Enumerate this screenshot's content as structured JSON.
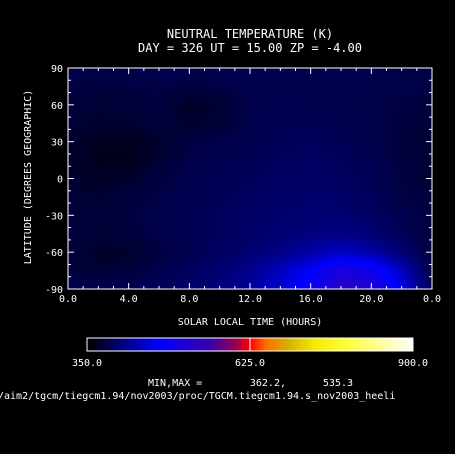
{
  "chart_data": {
    "type": "heatmap",
    "title": "NEUTRAL TEMPERATURE (K)",
    "subtitle": "DAY = 326   UT = 15.00   ZP =   -4.00",
    "xlabel": "SOLAR LOCAL TIME (HOURS)",
    "ylabel": "LATITUDE (DEGREES GEOGRAPHIC)",
    "xlim": [
      0.0,
      24.0
    ],
    "ylim": [
      -90,
      90
    ],
    "x_ticks": [
      "0.0",
      "4.0",
      "8.0",
      "12.0",
      "16.0",
      "20.0",
      "0.0"
    ],
    "y_ticks": [
      "90",
      "60",
      "30",
      "0",
      "-30",
      "-60",
      "-90"
    ],
    "x_tick_values": [
      0,
      4,
      8,
      12,
      16,
      20,
      24
    ],
    "y_tick_values": [
      90,
      60,
      30,
      0,
      -30,
      -60,
      -90
    ],
    "colorbar": {
      "min": 350.0,
      "mid": 625.0,
      "max": 900.0,
      "labels": [
        "350.0",
        "625.0",
        "900.0"
      ]
    },
    "minmax_label": "MIN,MAX =",
    "min_value": "362.2,",
    "max_value": "535.3",
    "file_path": "/aim2/tgcm/tiegcm1.94/nov2003/proc/TGCM.tiegcm1.94.s_nov2003_heeli",
    "x": [
      0,
      2,
      4,
      6,
      8,
      10,
      12,
      14,
      16,
      18,
      20,
      22,
      24
    ],
    "y": [
      90,
      75,
      60,
      45,
      30,
      15,
      0,
      -15,
      -30,
      -45,
      -60,
      -75,
      -90
    ],
    "z": [
      [
        385,
        385,
        386,
        387,
        388,
        388,
        387,
        387,
        386,
        386,
        386,
        385,
        385
      ],
      [
        382,
        380,
        381,
        384,
        380,
        382,
        386,
        387,
        386,
        386,
        385,
        384,
        382
      ],
      [
        378,
        375,
        376,
        380,
        368,
        374,
        385,
        388,
        387,
        386,
        384,
        381,
        378
      ],
      [
        376,
        372,
        373,
        378,
        372,
        376,
        386,
        390,
        390,
        388,
        385,
        380,
        376
      ],
      [
        373,
        366,
        365,
        372,
        380,
        384,
        388,
        392,
        394,
        391,
        386,
        379,
        373
      ],
      [
        372,
        363,
        364,
        374,
        384,
        388,
        390,
        394,
        396,
        394,
        388,
        380,
        372
      ],
      [
        374,
        368,
        372,
        380,
        386,
        390,
        393,
        396,
        398,
        396,
        390,
        381,
        374
      ],
      [
        377,
        373,
        378,
        384,
        388,
        392,
        396,
        399,
        401,
        400,
        393,
        384,
        377
      ],
      [
        379,
        376,
        380,
        386,
        390,
        394,
        398,
        402,
        404,
        404,
        397,
        387,
        379
      ],
      [
        379,
        376,
        378,
        385,
        389,
        394,
        399,
        404,
        410,
        412,
        405,
        392,
        379
      ],
      [
        378,
        370,
        372,
        380,
        388,
        396,
        404,
        414,
        428,
        442,
        430,
        405,
        378
      ],
      [
        382,
        375,
        378,
        386,
        394,
        404,
        416,
        440,
        470,
        510,
        495,
        440,
        382
      ],
      [
        390,
        388,
        390,
        394,
        400,
        410,
        424,
        450,
        485,
        530,
        520,
        460,
        390
      ]
    ]
  }
}
